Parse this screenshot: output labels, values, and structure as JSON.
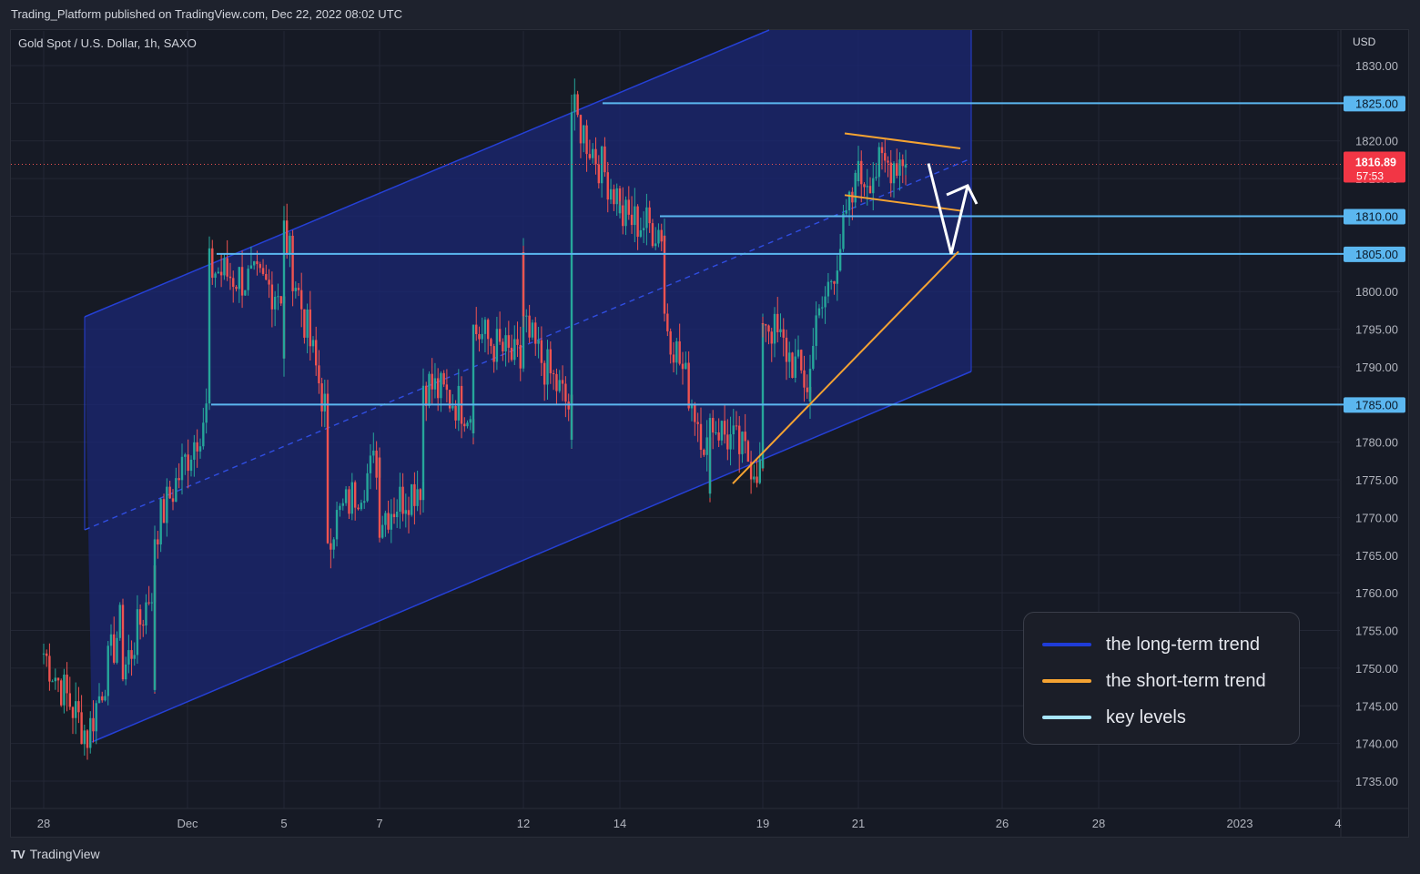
{
  "header": {
    "published": "Trading_Platform published on TradingView.com, Dec 22, 2022 08:02 UTC",
    "symbol": "Gold Spot / U.S. Dollar, 1h, SAXO",
    "currency": "USD"
  },
  "footer": {
    "brand": "TradingView",
    "logo": "TV"
  },
  "legend": [
    {
      "label": "the long-term trend",
      "color": "#1f3cd8"
    },
    {
      "label": "the short-term trend",
      "color": "#f5a332"
    },
    {
      "label": "key levels",
      "color": "#a8e6ff"
    }
  ],
  "chart_data": {
    "type": "candlestick",
    "ylim": [
      1732,
      1833
    ],
    "y_ticks": [
      "1830.00",
      "1825.00",
      "1820.00",
      "1815.00",
      "1810.00",
      "1805.00",
      "1800.00",
      "1795.00",
      "1790.00",
      "1785.00",
      "1780.00",
      "1775.00",
      "1770.00",
      "1765.00",
      "1760.00",
      "1755.00",
      "1750.00",
      "1745.00",
      "1740.00",
      "1735.00"
    ],
    "x_ticks": [
      "28",
      "Dec",
      "5",
      "7",
      "12",
      "14",
      "19",
      "21",
      "26",
      "28",
      "2023",
      "4"
    ],
    "key_levels": [
      1825,
      1810,
      1805,
      1785
    ],
    "last_price": "1816.89",
    "countdown": "57:53",
    "price_path": [
      {
        "x": "Nov 28",
        "y": 1752
      },
      {
        "x": "Nov 29",
        "y": 1741
      },
      {
        "x": "Nov 30",
        "y": 1757
      },
      {
        "x": "Nov 30",
        "y": 1749
      },
      {
        "x": "Dec 1",
        "y": 1762
      },
      {
        "x": "Dec 1",
        "y": 1748
      },
      {
        "x": "Dec 1",
        "y": 1768
      },
      {
        "x": "Dec 2",
        "y": 1785
      },
      {
        "x": "Dec 2",
        "y": 1803
      },
      {
        "x": "Dec 5",
        "y": 1800
      },
      {
        "x": "Dec 5",
        "y": 1790
      },
      {
        "x": "Dec 5",
        "y": 1808
      },
      {
        "x": "Dec 6",
        "y": 1783
      },
      {
        "x": "Dec 6",
        "y": 1768
      },
      {
        "x": "Dec 7",
        "y": 1778
      },
      {
        "x": "Dec 7",
        "y": 1770
      },
      {
        "x": "Dec 8",
        "y": 1775
      },
      {
        "x": "Dec 8",
        "y": 1788
      },
      {
        "x": "Dec 9",
        "y": 1784
      },
      {
        "x": "Dec 9",
        "y": 1795
      },
      {
        "x": "Dec 12",
        "y": 1790
      },
      {
        "x": "Dec 12",
        "y": 1804
      },
      {
        "x": "Dec 12",
        "y": 1795
      },
      {
        "x": "Dec 13",
        "y": 1784
      },
      {
        "x": "Dec 13",
        "y": 1779
      },
      {
        "x": "Dec 13",
        "y": 1787
      },
      {
        "x": "Dec 13",
        "y": 1786
      },
      {
        "x": "Dec 13",
        "y": 1824
      },
      {
        "x": "Dec 14",
        "y": 1812
      },
      {
        "x": "Dec 14",
        "y": 1810
      },
      {
        "x": "Dec 15",
        "y": 1808
      },
      {
        "x": "Dec 15",
        "y": 1797
      },
      {
        "x": "Dec 16",
        "y": 1778
      },
      {
        "x": "Dec 16",
        "y": 1776
      },
      {
        "x": "Dec 16",
        "y": 1783
      },
      {
        "x": "Dec 19",
        "y": 1776
      },
      {
        "x": "Dec 19",
        "y": 1793
      },
      {
        "x": "Dec 19",
        "y": 1797
      },
      {
        "x": "Dec 20",
        "y": 1787
      },
      {
        "x": "Dec 20",
        "y": 1785
      },
      {
        "x": "Dec 20",
        "y": 1792
      },
      {
        "x": "Dec 21",
        "y": 1815
      },
      {
        "x": "Dec 21",
        "y": 1819
      },
      {
        "x": "Dec 21",
        "y": 1815
      },
      {
        "x": "Dec 22",
        "y": 1818
      },
      {
        "x": "Dec 22",
        "y": 1816.89
      }
    ],
    "projection": [
      {
        "x": "Dec 22",
        "y": 1817
      },
      {
        "x": "Dec 23",
        "y": 1805
      },
      {
        "x": "Dec 23",
        "y": 1814
      }
    ]
  }
}
